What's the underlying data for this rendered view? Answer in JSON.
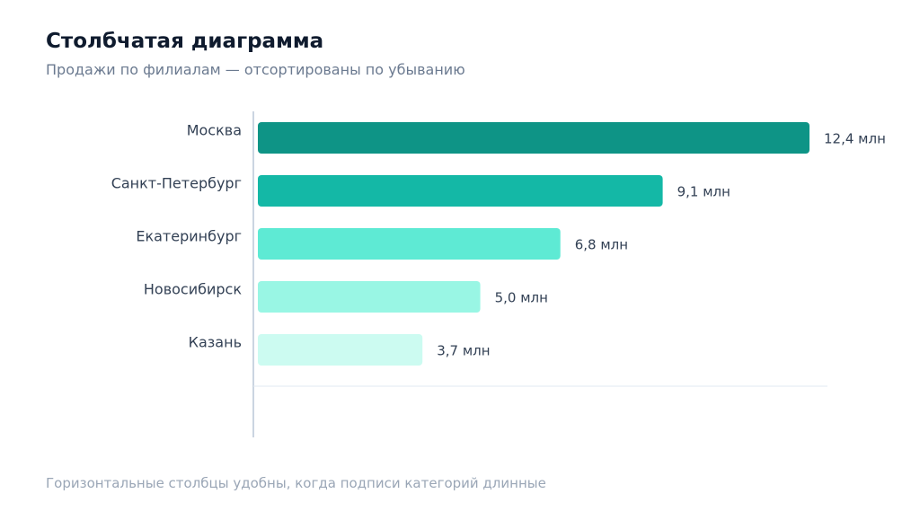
{
  "title": "Столбчатая диаграмма",
  "subtitle": "Продажи по филиалам — отсортированы по убыванию",
  "footnote": "Горизонтальные столбцы удобны, когда подписи категорий длинные",
  "chart_data": {
    "type": "bar",
    "orientation": "horizontal",
    "sorted": "descending",
    "categories": [
      "Москва",
      "Санкт-Петербург",
      "Екатеринбург",
      "Новосибирск",
      "Казань"
    ],
    "values": [
      12.4,
      9.1,
      6.8,
      5.0,
      3.7
    ],
    "value_labels": [
      "12,4 млн",
      "9,1 млн",
      "6,8 млн",
      "5,0 млн",
      "3,7 млн"
    ],
    "unit": "млн",
    "xlim": [
      0,
      12.4
    ],
    "grid": false,
    "legend": "none",
    "colors": [
      "#0e9486",
      "#14b8a6",
      "#5eead4",
      "#99f6e4",
      "#ccfbf1"
    ],
    "axis_color": "#cbd5e1",
    "label_color": "#334155"
  }
}
